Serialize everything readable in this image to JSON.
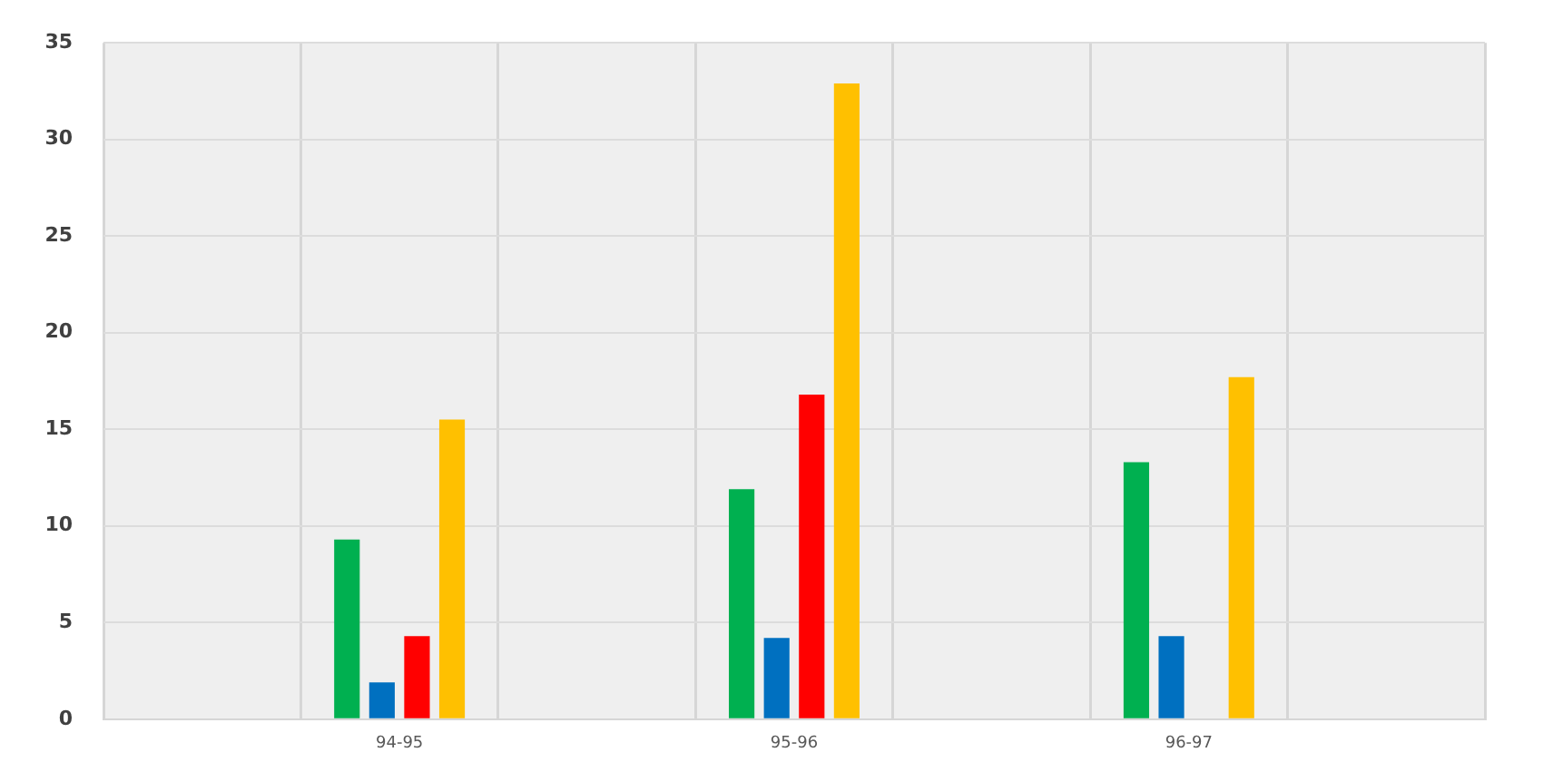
{
  "chart_data": {
    "type": "bar",
    "categories": [
      null,
      "94-95",
      null,
      "95-96",
      null,
      "96-97",
      null
    ],
    "series": [
      {
        "color": "#00b050",
        "values": [
          null,
          9.3,
          null,
          11.9,
          null,
          13.3,
          null
        ]
      },
      {
        "color": "#0070c0",
        "values": [
          null,
          1.9,
          null,
          4.2,
          null,
          4.3,
          null
        ]
      },
      {
        "color": "#ff0000",
        "values": [
          null,
          4.3,
          null,
          16.8,
          null,
          null,
          null
        ]
      },
      {
        "color": "#ffc000",
        "values": [
          null,
          15.5,
          null,
          32.9,
          null,
          17.7,
          null
        ]
      }
    ],
    "ylim": [
      0,
      35
    ],
    "yticks": [
      0,
      5,
      10,
      15,
      20,
      25,
      30,
      35
    ],
    "grid": true,
    "legend": false
  }
}
